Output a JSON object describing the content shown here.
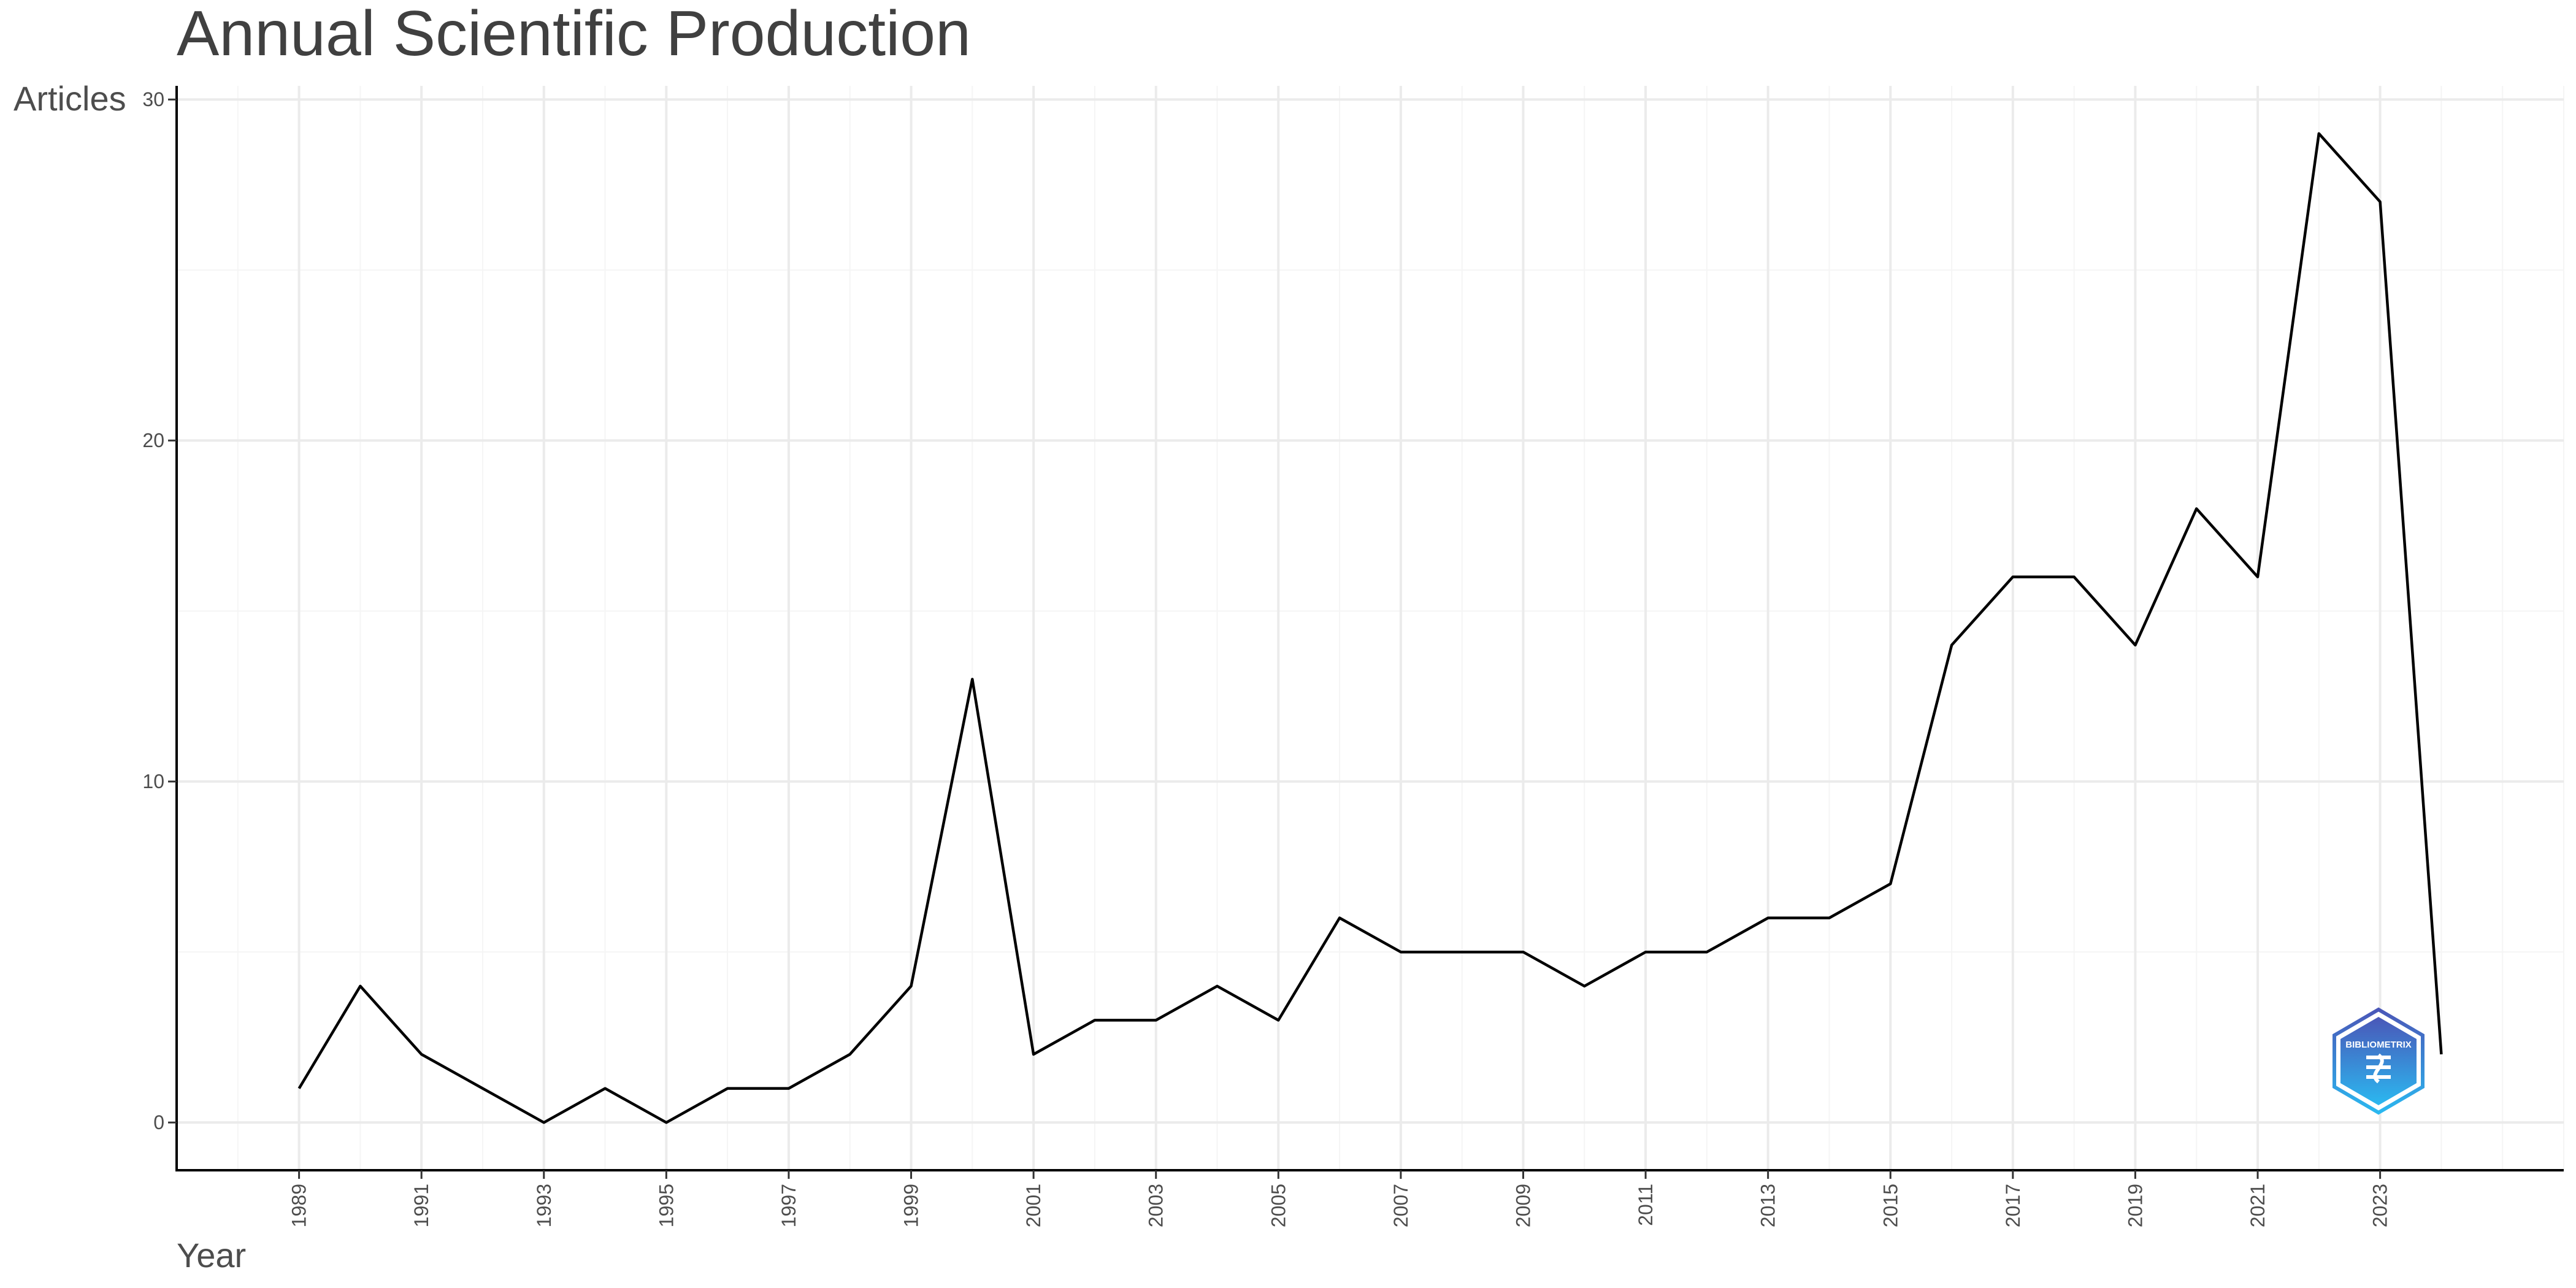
{
  "chart_data": {
    "type": "line",
    "title": "Annual Scientific Production",
    "xlabel": "Year",
    "ylabel": "Articles",
    "x": [
      1989,
      1990,
      1991,
      1992,
      1993,
      1994,
      1995,
      1996,
      1997,
      1998,
      1999,
      2000,
      2001,
      2002,
      2003,
      2004,
      2005,
      2006,
      2007,
      2008,
      2009,
      2010,
      2011,
      2012,
      2013,
      2014,
      2015,
      2016,
      2017,
      2018,
      2019,
      2020,
      2021,
      2022,
      2023,
      2024
    ],
    "series": [
      {
        "values": [
          1,
          4,
          2,
          1,
          0,
          1,
          0,
          1,
          1,
          2,
          4,
          13,
          2,
          3,
          3,
          4,
          3,
          6,
          5,
          5,
          5,
          4,
          5,
          5,
          6,
          6,
          7,
          14,
          16,
          16,
          14,
          18,
          16,
          29,
          27,
          2
        ]
      }
    ],
    "xlim": [
      1987,
      2026
    ],
    "ylim": [
      -1.4,
      30.4
    ],
    "x_ticks": [
      1989,
      1991,
      1993,
      1995,
      1997,
      1999,
      2001,
      2003,
      2005,
      2007,
      2009,
      2011,
      2013,
      2015,
      2017,
      2019,
      2021,
      2023
    ],
    "y_ticks": [
      0,
      10,
      20,
      30
    ],
    "grid": true,
    "line_color": "#000000"
  },
  "watermark": {
    "text": "BIBLIOMETRIX",
    "colors": {
      "top": "#4a57b8",
      "bottom": "#2bb8f0"
    }
  }
}
